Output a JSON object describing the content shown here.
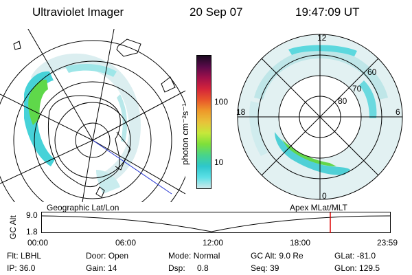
{
  "header": {
    "instrument": "Ultraviolet Imager",
    "date": "20 Sep 07",
    "time": "19:47:09 UT"
  },
  "geo_panel": {
    "label": "Geographic Lat/Lon"
  },
  "apex_panel": {
    "label": "Apex MLat/MLT",
    "mlt_labels": [
      "12",
      "18",
      "6",
      "0"
    ],
    "lat_labels": [
      "60",
      "70",
      "80"
    ]
  },
  "colorbar": {
    "unit_label": "photon cm⁻²s⁻¹",
    "ticks": [
      "100",
      "10"
    ],
    "colors": [
      "#cfe8ea",
      "#5ce0e6",
      "#2ec7cc",
      "#48d48a",
      "#7ee03a",
      "#c6e83a",
      "#e8c23a",
      "#ee9a2a",
      "#e8562a",
      "#d4243a",
      "#a0104a",
      "#5a0a4a",
      "#1a0a20"
    ]
  },
  "timeline": {
    "axis_label": "GC Alt",
    "y_max": "9.0",
    "y_min": "1.8",
    "x_labels": [
      "00:00",
      "06:00",
      "12:00",
      "18:00",
      "23:59"
    ],
    "marker_color": "#dd0000"
  },
  "status": {
    "filter_label": "Flt:",
    "filter_value": "LBHL",
    "ip_label": "IP:",
    "ip_value": "36.0",
    "door_label": "Door:",
    "door_value": "Open",
    "gain_label": "Gain:",
    "gain_value": "14",
    "mode_label": "Mode:",
    "mode_value": "Normal",
    "dsp_label": "Dsp:",
    "dsp_value": "0.8",
    "gcalt_label": "GC Alt:",
    "gcalt_value": "9.0 Re",
    "seq_label": "Seq:",
    "seq_value": "39",
    "glat_label": "GLat:",
    "glat_value": "-81.0",
    "glon_label": "GLon:",
    "glon_value": "129.5"
  }
}
